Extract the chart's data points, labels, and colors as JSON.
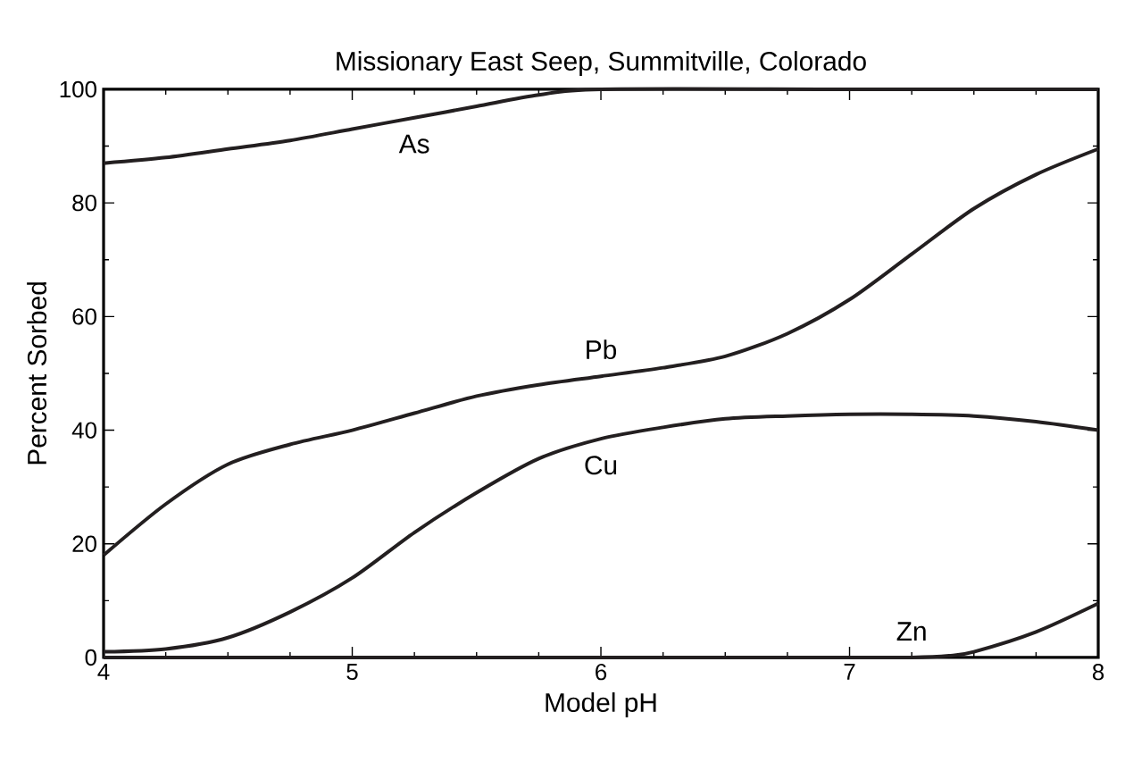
{
  "chart_data": {
    "type": "line",
    "title": "Missionary East Seep, Summitville, Colorado",
    "xlabel": "Model pH",
    "ylabel": "Percent Sorbed",
    "xlim": [
      4,
      8
    ],
    "ylim": [
      0,
      100
    ],
    "xticks": [
      4,
      5,
      6,
      7,
      8
    ],
    "yticks": [
      0,
      20,
      40,
      60,
      80,
      100
    ],
    "grid": false,
    "legend": false,
    "marker": "none",
    "line_style": "solid",
    "series": [
      {
        "name": "As",
        "color": "#231f20",
        "x": [
          4,
          4.25,
          4.5,
          4.75,
          5,
          5.25,
          5.5,
          5.75,
          6,
          7,
          8
        ],
        "values": [
          87,
          88,
          89.5,
          91,
          93,
          95,
          97,
          99,
          100,
          100,
          100
        ]
      },
      {
        "name": "Pb",
        "color": "#231f20",
        "x": [
          4,
          4.25,
          4.5,
          4.75,
          5,
          5.25,
          5.5,
          5.75,
          6,
          6.25,
          6.5,
          6.75,
          7,
          7.25,
          7.5,
          7.75,
          8
        ],
        "values": [
          18,
          27,
          34,
          37.5,
          40,
          43,
          46,
          48,
          49.5,
          51,
          53,
          57,
          63,
          71,
          79,
          85,
          89.5
        ]
      },
      {
        "name": "Cu",
        "color": "#231f20",
        "x": [
          4,
          4.25,
          4.5,
          4.75,
          5,
          5.25,
          5.5,
          5.75,
          6,
          6.25,
          6.5,
          6.75,
          7,
          7.25,
          7.5,
          7.75,
          8
        ],
        "values": [
          1,
          1.5,
          3.5,
          8,
          14,
          22,
          29,
          35,
          38.5,
          40.5,
          42,
          42.5,
          42.8,
          42.8,
          42.5,
          41.5,
          40
        ]
      },
      {
        "name": "Zn",
        "color": "#231f20",
        "x": [
          4,
          5,
          6,
          7,
          7.25,
          7.4,
          7.5,
          7.75,
          8
        ],
        "values": [
          0,
          0,
          0,
          0,
          0,
          0.3,
          1,
          4.5,
          9.5
        ]
      }
    ]
  }
}
